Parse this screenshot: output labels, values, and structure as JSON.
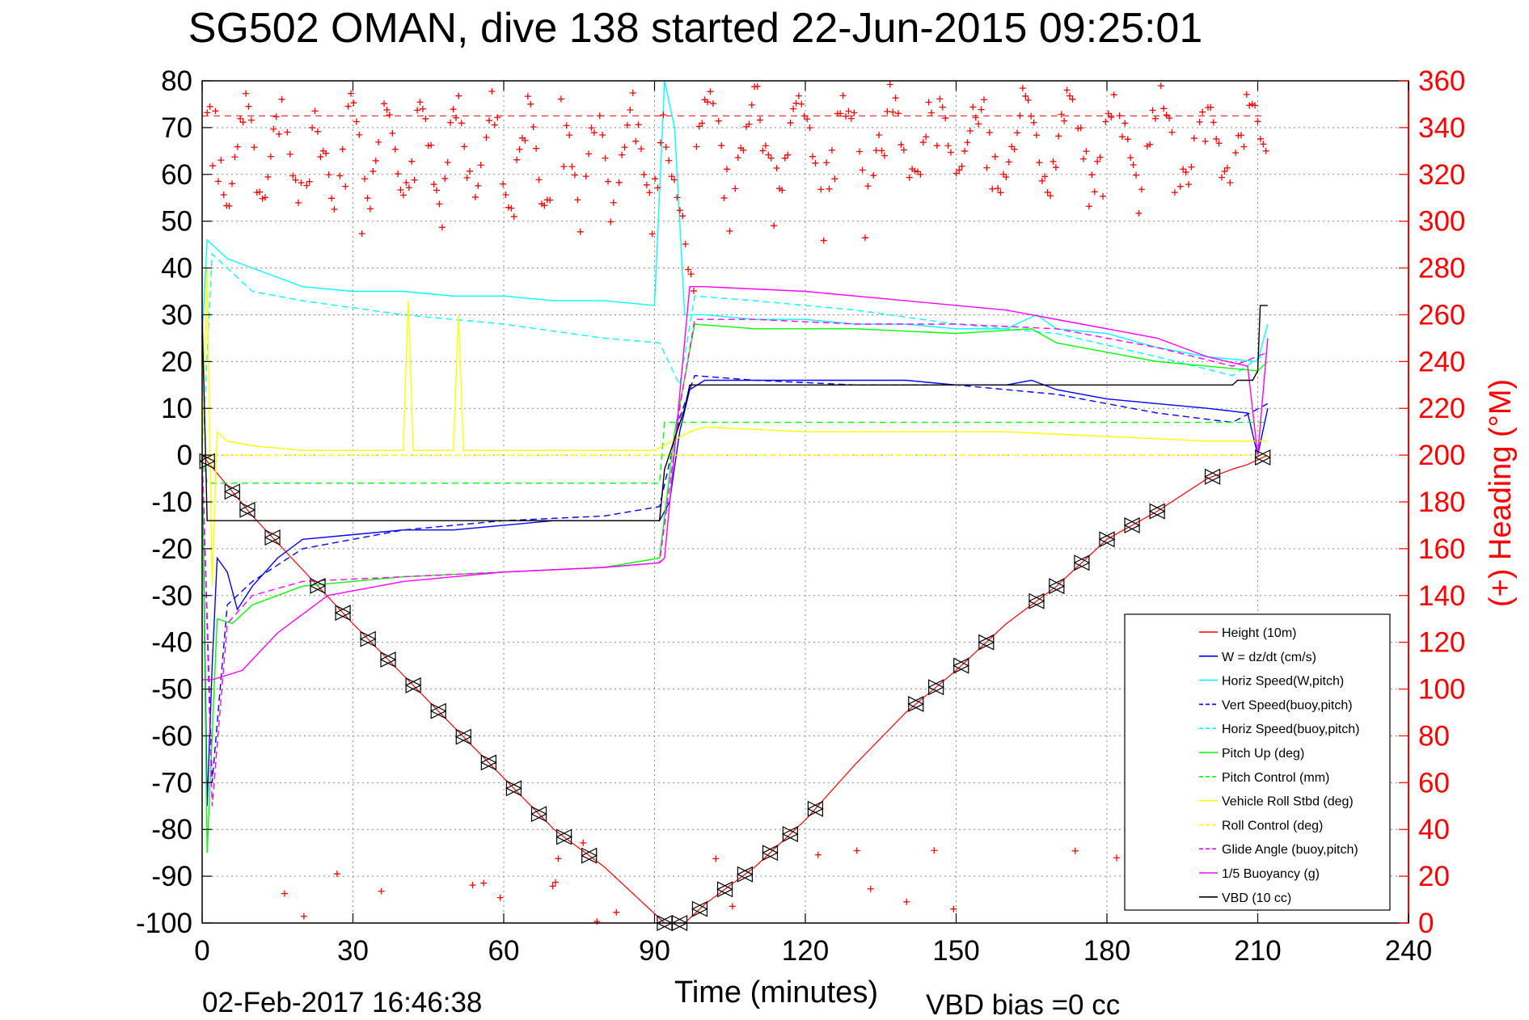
{
  "chart_data": {
    "type": "line",
    "title": "SG502 OMAN, dive 138 started 22-Jun-2015 09:25:01",
    "xlabel": "Time (minutes)",
    "ylabel": "",
    "y2label": "(+) Heading (°M)",
    "xlim": [
      0,
      240
    ],
    "ylim": [
      -100,
      80
    ],
    "y2lim": [
      0,
      360
    ],
    "xticks": [
      "0",
      "30",
      "60",
      "90",
      "120",
      "150",
      "180",
      "210",
      "240"
    ],
    "yticks": [
      "80",
      "70",
      "60",
      "50",
      "40",
      "30",
      "20",
      "10",
      "0",
      "-10",
      "-20",
      "-30",
      "-40",
      "-50",
      "-60",
      "-70",
      "-80",
      "-90",
      "-100"
    ],
    "y2ticks": [
      "360",
      "340",
      "320",
      "300",
      "280",
      "260",
      "240",
      "220",
      "200",
      "180",
      "160",
      "140",
      "120",
      "100",
      "80",
      "60",
      "40",
      "20",
      "0"
    ],
    "grid": true,
    "legend_position": "bottom-right",
    "footer_left": "02-Feb-2017 16:46:38",
    "footer_right": "VBD bias =0 cc",
    "colors": {
      "heading": "#ff0000",
      "axis_right": "#ff0000",
      "grid": "#8a8a8a"
    },
    "series": [
      {
        "name": "Height (10m)",
        "color": "#ff0000",
        "style": "solid",
        "x": [
          0,
          10,
          30,
          50,
          70,
          80,
          92,
          94,
          96,
          100,
          110,
          120,
          130,
          140,
          150,
          160,
          170,
          180,
          190,
          200,
          205,
          208,
          210,
          212
        ],
        "y": [
          0,
          -13,
          -36,
          -58,
          -80,
          -88,
          -100,
          -100,
          -100,
          -96,
          -88,
          -78,
          -66,
          -55,
          -46,
          -36,
          -28,
          -18,
          -12,
          -5,
          -3,
          -2,
          -1,
          0
        ]
      },
      {
        "name": "W = dz/dt (cm/s)",
        "color": "#0000ff",
        "style": "solid",
        "x": [
          0,
          1,
          2,
          3,
          5,
          7,
          10,
          15,
          20,
          30,
          40,
          50,
          60,
          70,
          80,
          91,
          93,
          95,
          97,
          100,
          110,
          120,
          130,
          140,
          150,
          160,
          165,
          170,
          180,
          190,
          200,
          208,
          210,
          212
        ],
        "y": [
          0,
          -75,
          -45,
          -22,
          -25,
          -33,
          -28,
          -22,
          -18,
          -17,
          -16,
          -16,
          -15,
          -14,
          -14,
          -14,
          -10,
          5,
          14,
          16,
          16,
          16,
          16,
          16,
          15,
          15,
          16,
          14,
          12,
          11,
          10,
          9,
          0,
          10
        ]
      },
      {
        "name": "Horiz Speed(W,pitch)",
        "color": "#00ffff",
        "style": "solid",
        "x": [
          0,
          1,
          5,
          10,
          20,
          30,
          40,
          50,
          60,
          70,
          80,
          90,
          92,
          94,
          96,
          100,
          110,
          120,
          130,
          140,
          150,
          160,
          166,
          170,
          180,
          190,
          200,
          210,
          212
        ],
        "y": [
          25,
          46,
          42,
          40,
          36,
          35,
          35,
          34,
          34,
          33,
          33,
          32,
          80,
          70,
          30,
          30,
          29,
          29,
          28,
          28,
          27,
          27,
          30,
          27,
          26,
          23,
          21,
          20,
          28
        ]
      },
      {
        "name": "Vert Speed(buoy,pitch)",
        "color": "#0000ff",
        "style": "dashed",
        "x": [
          0,
          2,
          5,
          10,
          20,
          40,
          60,
          80,
          91,
          95,
          98,
          110,
          130,
          150,
          170,
          190,
          205,
          212
        ],
        "y": [
          0,
          -70,
          -32,
          -27,
          -20,
          -16,
          -14,
          -13,
          -11,
          8,
          17,
          16,
          15,
          15,
          13,
          9,
          7,
          11
        ]
      },
      {
        "name": "Horiz Speed(buoy,pitch)",
        "color": "#00ffff",
        "style": "dashed",
        "x": [
          0,
          2,
          10,
          20,
          40,
          60,
          80,
          91,
          95,
          98,
          110,
          130,
          150,
          170,
          190,
          205,
          212
        ],
        "y": [
          0,
          43,
          35,
          33,
          30,
          28,
          25,
          24,
          15,
          34,
          33,
          31,
          28,
          26,
          21,
          17,
          22
        ]
      },
      {
        "name": "Pitch Up (deg)",
        "color": "#00ff00",
        "style": "solid",
        "x": [
          0,
          1,
          3,
          6,
          10,
          20,
          40,
          60,
          80,
          91,
          94,
          98,
          110,
          130,
          150,
          165,
          170,
          180,
          190,
          200,
          210,
          212
        ],
        "y": [
          0,
          -85,
          -35,
          -36,
          -32,
          -28,
          -26,
          -25,
          -24,
          -22,
          5,
          28,
          27,
          27,
          26,
          27,
          24,
          22,
          20,
          19,
          18,
          20
        ]
      },
      {
        "name": "Pitch Control (mm)",
        "color": "#00ff00",
        "style": "dashed",
        "x": [
          0,
          1,
          91,
          92,
          212
        ],
        "y": [
          0,
          -6,
          -6,
          7,
          7
        ]
      },
      {
        "name": "Vehicle Roll Stbd (deg)",
        "color": "#ffff00",
        "style": "solid",
        "x": [
          0,
          1,
          2,
          3,
          5,
          10,
          20,
          30,
          40,
          41,
          42,
          50,
          51,
          52,
          90,
          97,
          100,
          120,
          140,
          160,
          180,
          200,
          210,
          212
        ],
        "y": [
          0,
          40,
          -28,
          5,
          3,
          2,
          1,
          1,
          1,
          33,
          1,
          1,
          30,
          1,
          1,
          5,
          6,
          5,
          5,
          5,
          4,
          3,
          3,
          3
        ]
      },
      {
        "name": "Roll Control (deg)",
        "color": "#ffff00",
        "style": "dashed",
        "x": [
          0,
          212
        ],
        "y": [
          0,
          0
        ]
      },
      {
        "name": "Glide Angle (buoy,pitch)",
        "color": "#ff00ff",
        "style": "dashed",
        "x": [
          0,
          2,
          5,
          10,
          20,
          40,
          60,
          80,
          91,
          95,
          98,
          110,
          130,
          150,
          170,
          190,
          205,
          212
        ],
        "y": [
          0,
          -75,
          -36,
          -30,
          -27,
          -26,
          -25,
          -24,
          -23,
          10,
          29,
          29,
          28,
          28,
          27,
          23,
          19,
          22
        ]
      },
      {
        "name": "1/5 Buoyancy (g)",
        "color": "#ff00ff",
        "style": "solid",
        "x": [
          0,
          2,
          8,
          15,
          25,
          40,
          60,
          80,
          91,
          92,
          97,
          100,
          120,
          140,
          160,
          175,
          190,
          200,
          208,
          210,
          212
        ],
        "y": [
          -48,
          -48,
          -46,
          -38,
          -30,
          -27,
          -25,
          -24,
          -23,
          -22,
          36,
          36,
          35,
          33,
          31,
          28,
          25,
          21,
          19,
          0,
          25
        ]
      },
      {
        "name": "VBD (10 cc)",
        "color": "#000000",
        "style": "solid",
        "x": [
          0,
          1,
          91,
          92,
          96,
          97,
          205,
          206,
          209,
          210,
          210.5,
          212
        ],
        "y": [
          30,
          -14,
          -14,
          -3,
          10,
          15,
          15,
          16,
          16,
          18,
          32,
          32
        ]
      }
    ]
  }
}
